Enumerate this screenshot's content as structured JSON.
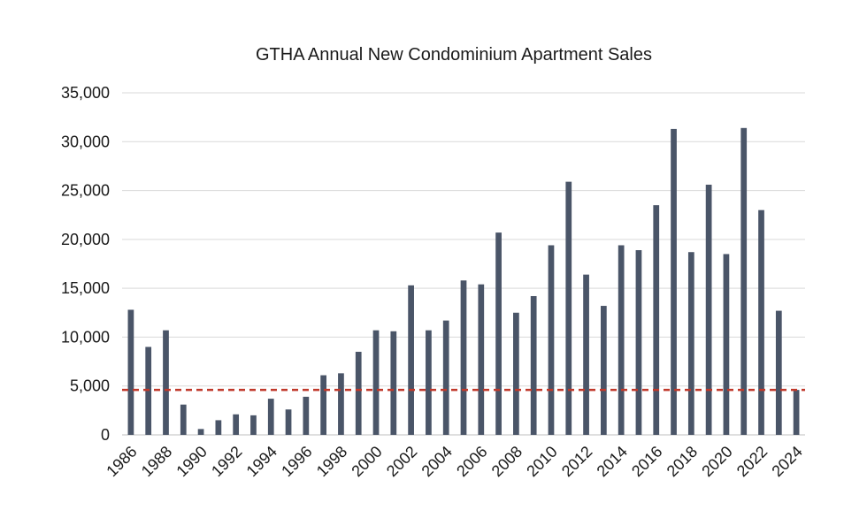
{
  "chart_data": {
    "type": "bar",
    "title": "GTHA Annual New Condominium Apartment Sales",
    "xlabel": "",
    "ylabel": "",
    "ylim": [
      0,
      35000
    ],
    "y_ticks": [
      0,
      5000,
      10000,
      15000,
      20000,
      25000,
      30000,
      35000
    ],
    "y_tick_labels": [
      "0",
      "5,000",
      "10,000",
      "15,000",
      "20,000",
      "25,000",
      "30,000",
      "35,000"
    ],
    "categories": [
      "1986",
      "1987",
      "1988",
      "1989",
      "1990",
      "1991",
      "1992",
      "1993",
      "1994",
      "1995",
      "1996",
      "1997",
      "1998",
      "1999",
      "2000",
      "2001",
      "2002",
      "2003",
      "2004",
      "2005",
      "2006",
      "2007",
      "2008",
      "2009",
      "2010",
      "2011",
      "2012",
      "2013",
      "2014",
      "2015",
      "2016",
      "2017",
      "2018",
      "2019",
      "2020",
      "2021",
      "2022",
      "2023",
      "2024"
    ],
    "x_tick_labels": [
      "1986",
      "",
      "1988",
      "",
      "1990",
      "",
      "1992",
      "",
      "1994",
      "",
      "1996",
      "",
      "1998",
      "",
      "2000",
      "",
      "2002",
      "",
      "2004",
      "",
      "2006",
      "",
      "2008",
      "",
      "2010",
      "",
      "2012",
      "",
      "2014",
      "",
      "2016",
      "",
      "2018",
      "",
      "2020",
      "",
      "2022",
      "",
      "2024"
    ],
    "values": [
      12800,
      9000,
      10700,
      3100,
      600,
      1500,
      2100,
      2000,
      3700,
      2600,
      3900,
      6100,
      6300,
      8500,
      10700,
      10600,
      15300,
      10700,
      11700,
      15800,
      15400,
      20700,
      12500,
      14200,
      19400,
      25900,
      16400,
      13200,
      19400,
      18900,
      23500,
      31300,
      18700,
      25600,
      18500,
      31400,
      23000,
      12700,
      4600
    ],
    "reference_line": {
      "value": 4600,
      "style": "dashed",
      "color": "#c0392b"
    },
    "bar_color": "#4a5568",
    "grid": true,
    "legend": "none"
  }
}
